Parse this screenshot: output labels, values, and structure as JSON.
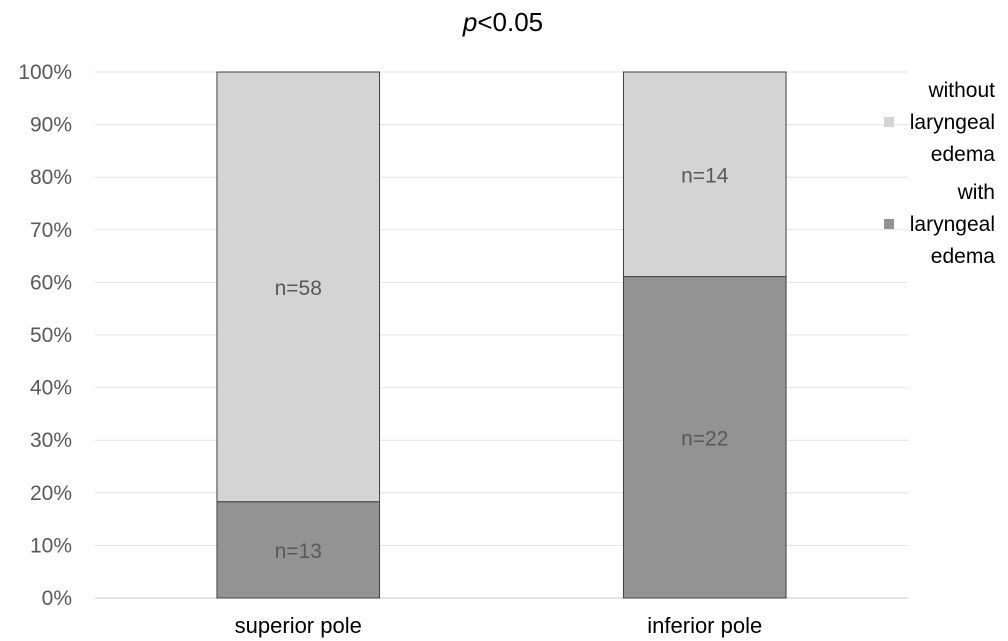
{
  "chart_data": {
    "type": "bar",
    "stacked": true,
    "normalized_percent": true,
    "title_italic": "p",
    "title_rest": "<0.05",
    "categories": [
      "superior pole",
      "inferior pole"
    ],
    "series": [
      {
        "name": [
          "with",
          "laryngeal",
          "edema"
        ],
        "counts": [
          13,
          22
        ],
        "labels": [
          "n=13",
          "n=22"
        ],
        "color": "#939393"
      },
      {
        "name": [
          "without",
          "laryngeal",
          "edema"
        ],
        "counts": [
          58,
          14
        ],
        "labels": [
          "n=58",
          "n=14"
        ],
        "color": "#d4d4d4"
      }
    ],
    "y_ticks": [
      "0%",
      "10%",
      "20%",
      "30%",
      "40%",
      "50%",
      "60%",
      "70%",
      "80%",
      "90%",
      "100%"
    ],
    "ylim": [
      0,
      100
    ],
    "grid": true,
    "legend_position": "right",
    "colors": {
      "grid": "#e3e3e3",
      "bar_outline": "#404040"
    }
  }
}
